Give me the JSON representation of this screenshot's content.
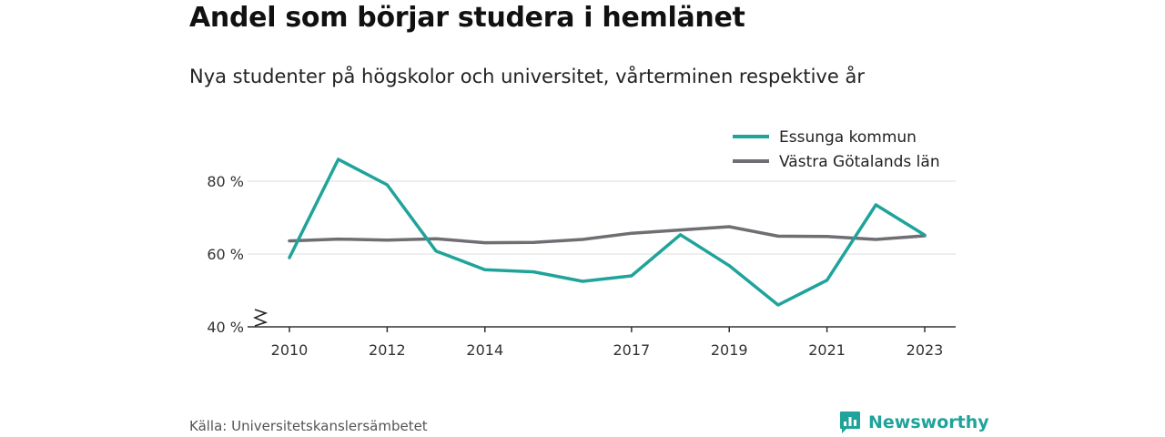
{
  "header": {
    "title": "Andel som börjar studera i hemlänet",
    "subtitle": "Nya studenter på högskolor och universitet, vårterminen respektive år"
  },
  "footer": {
    "source": "Källa: Universitetskanslersämbetet",
    "brand": "Newsworthy",
    "brand_color": "#1fa39b",
    "brand_icon": "bar-chart-icon"
  },
  "chart_data": {
    "type": "line",
    "x": [
      2010,
      2011,
      2012,
      2013,
      2014,
      2015,
      2016,
      2017,
      2018,
      2019,
      2020,
      2021,
      2022,
      2023
    ],
    "x_tick_labels": [
      "2010",
      "2012",
      "2014",
      "2017",
      "2019",
      "2021",
      "2023"
    ],
    "y_tick_values": [
      40,
      60,
      80
    ],
    "y_tick_labels": [
      "40 %",
      "60 %",
      "80 %"
    ],
    "ylim": [
      40,
      90
    ],
    "axis_break": true,
    "grid": true,
    "legend_position": "top-right",
    "series": [
      {
        "name": "Essunga kommun",
        "color": "#1fa39b",
        "values": [
          59,
          86,
          79,
          60.8,
          55.7,
          55.1,
          52.5,
          54,
          65.3,
          56.8,
          46,
          52.8,
          73.5,
          65.2
        ]
      },
      {
        "name": "Västra Götalands län",
        "color": "#6e6e73",
        "values": [
          63.6,
          64.1,
          63.8,
          64.2,
          63.1,
          63.2,
          64,
          65.7,
          66.6,
          67.5,
          64.9,
          64.8,
          64,
          65
        ]
      }
    ]
  }
}
